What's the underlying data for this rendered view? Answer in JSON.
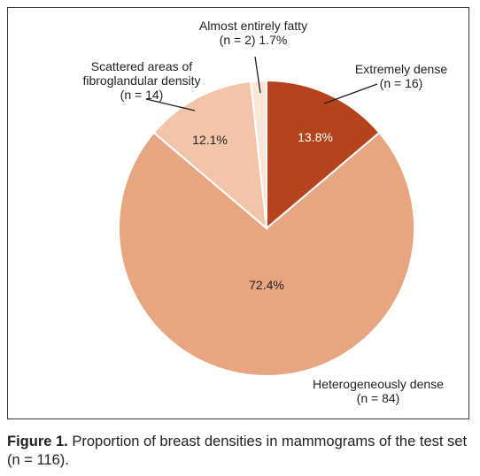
{
  "chart_data": {
    "type": "pie",
    "slices": [
      {
        "label_lines": [
          "Extremely dense",
          "(n = 16)"
        ],
        "n": 16,
        "percent_text": "13.8%",
        "percent": 13.8,
        "color": "#b5441d"
      },
      {
        "label_lines": [
          "Heterogeneously dense",
          "(n = 84)"
        ],
        "n": 84,
        "percent_text": "72.4%",
        "percent": 72.4,
        "color": "#e8a582"
      },
      {
        "label_lines": [
          "Scattered areas of",
          "fibroglandular density",
          "(n = 14)"
        ],
        "n": 14,
        "percent_text": "12.1%",
        "percent": 12.1,
        "color": "#f2c5a8"
      },
      {
        "label_lines": [
          "Almost entirely fatty",
          "(n = 2) 1.7%"
        ],
        "n": 2,
        "percent_text": "",
        "percent": 1.7,
        "color": "#fbe6d7"
      }
    ]
  },
  "caption": {
    "figure_label": "Figure 1.",
    "text": " Proportion of breast densities in mammograms of the test set (n = 116)."
  }
}
